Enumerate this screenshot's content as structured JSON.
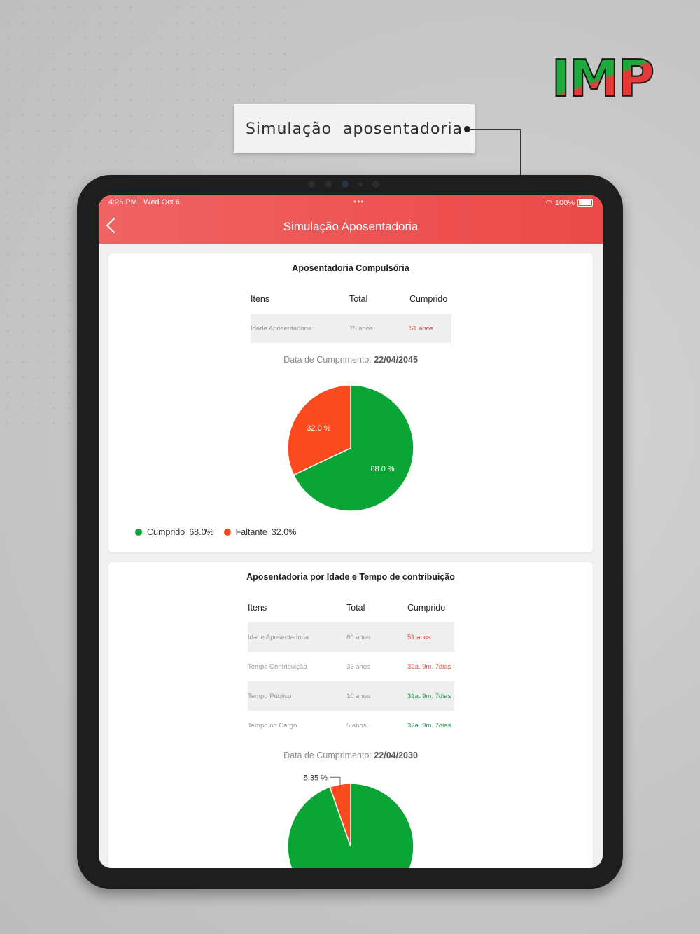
{
  "brand_logo": "IMP",
  "callout": {
    "text": "Simulação  aposentadoria"
  },
  "status_bar": {
    "time": "4:26 PM   Wed Oct 6",
    "dots": "•••",
    "battery": "100%"
  },
  "navbar": {
    "title": "Simulação Aposentadoria"
  },
  "colors": {
    "cumprido": "#0aa534",
    "faltante": "#fb4b1e",
    "header": "#ee5252"
  },
  "card1": {
    "title": "Aposentadoria Compulsória",
    "headers": [
      "Itens",
      "Total",
      "Cumprido"
    ],
    "rows": [
      {
        "item": "Idade Aposentadoria",
        "total": "75 anos",
        "cumprido": "51 anos",
        "status": "red"
      }
    ],
    "date_label": "Data de Cumprimento:",
    "date_value": "22/04/2045",
    "legend": [
      {
        "name": "Cumprido",
        "value": "68.0%"
      },
      {
        "name": "Faltante",
        "value": "32.0%"
      }
    ]
  },
  "card2": {
    "title": "Aposentadoria por Idade e Tempo de contribuição",
    "headers": [
      "Itens",
      "Total",
      "Cumprido"
    ],
    "rows": [
      {
        "item": "Idade Aposentadoria",
        "total": "60 anos",
        "cumprido": "51 anos",
        "status": "red"
      },
      {
        "item": "Tempo Contribuição",
        "total": "35 anos",
        "cumprido": "32a. 9m. 7dias",
        "status": "red"
      },
      {
        "item": "Tempo Público",
        "total": "10 anos",
        "cumprido": "32a. 9m. 7dias",
        "status": "green"
      },
      {
        "item": "Tempo no Cargo",
        "total": "5 anos",
        "cumprido": "32a. 9m. 7dias",
        "status": "green"
      }
    ],
    "date_label": "Data de Cumprimento:",
    "date_value": "22/04/2030"
  },
  "chart_data": [
    {
      "type": "pie",
      "categories": [
        "Cumprido",
        "Faltante"
      ],
      "values": [
        68.0,
        32.0
      ],
      "labels": [
        "68.0 %",
        "32.0 %"
      ],
      "colors": [
        "#0aa534",
        "#fb4b1e"
      ]
    },
    {
      "type": "pie",
      "categories": [
        "Cumprido",
        "Faltante"
      ],
      "values": [
        94.65,
        5.35
      ],
      "labels": [
        "",
        "5.35 %"
      ],
      "colors": [
        "#0aa534",
        "#fb4b1e"
      ]
    }
  ]
}
